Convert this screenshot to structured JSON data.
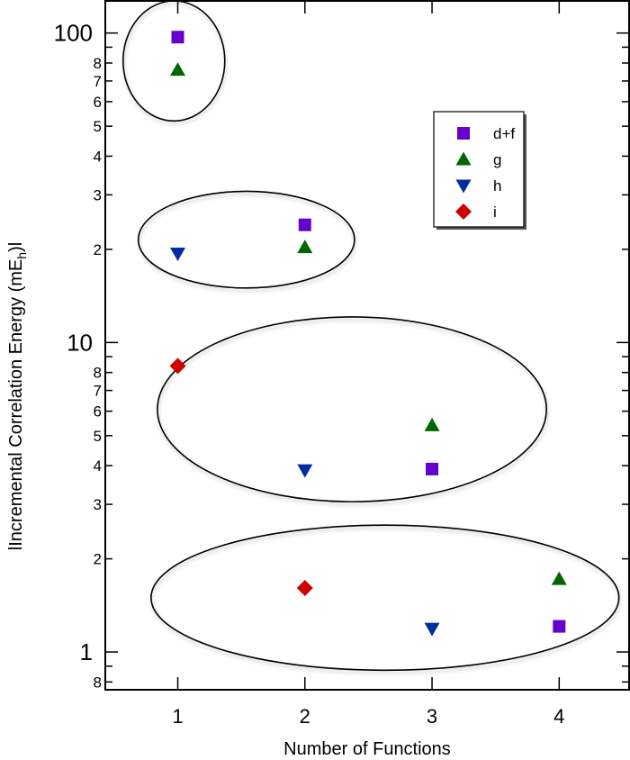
{
  "chart_data": {
    "type": "scatter",
    "title": "",
    "xlabel": "Number of Functions",
    "ylabel": "lIncremental Correlation Energy (mE_h)l",
    "ylabel_parts": {
      "prefix": "lIncremental Correlation Energy (mE",
      "subscript": "h",
      "suffix": ")l"
    },
    "xscale": "linear",
    "yscale": "log",
    "xlim": [
      0.43,
      4.55
    ],
    "ylim": [
      0.755,
      127
    ],
    "grid": false,
    "legend_position": "top-right",
    "x_ticks": [
      {
        "value": 1,
        "label": "1"
      },
      {
        "value": 2,
        "label": "2"
      },
      {
        "value": 3,
        "label": "3"
      },
      {
        "value": 4,
        "label": "4"
      }
    ],
    "y_major_ticks": [
      {
        "value": 1,
        "label": "1"
      },
      {
        "value": 10,
        "label": "10"
      },
      {
        "value": 100,
        "label": "100"
      }
    ],
    "y_minor_ticks": [
      {
        "value": 0.8,
        "label": "8"
      },
      {
        "value": 0.9,
        "label": ""
      },
      {
        "value": 2,
        "label": "2"
      },
      {
        "value": 3,
        "label": "3"
      },
      {
        "value": 4,
        "label": "4"
      },
      {
        "value": 5,
        "label": "5"
      },
      {
        "value": 6,
        "label": "6"
      },
      {
        "value": 7,
        "label": "7"
      },
      {
        "value": 8,
        "label": "8"
      },
      {
        "value": 9,
        "label": ""
      },
      {
        "value": 20,
        "label": "2"
      },
      {
        "value": 30,
        "label": "3"
      },
      {
        "value": 40,
        "label": "4"
      },
      {
        "value": 50,
        "label": "5"
      },
      {
        "value": 60,
        "label": "6"
      },
      {
        "value": 70,
        "label": "7"
      },
      {
        "value": 80,
        "label": "8"
      },
      {
        "value": 90,
        "label": ""
      }
    ],
    "series": [
      {
        "name": "d+f",
        "marker": "square",
        "color": "#6600cc",
        "points": [
          {
            "x": 1,
            "y": 97
          },
          {
            "x": 2,
            "y": 24
          },
          {
            "x": 3,
            "y": 3.9
          },
          {
            "x": 4,
            "y": 1.21
          }
        ]
      },
      {
        "name": "g",
        "marker": "triangle-up",
        "color": "#006600",
        "points": [
          {
            "x": 1,
            "y": 76
          },
          {
            "x": 2,
            "y": 20.3
          },
          {
            "x": 3,
            "y": 5.4
          },
          {
            "x": 4,
            "y": 1.72
          }
        ]
      },
      {
        "name": "h",
        "marker": "triangle-down",
        "color": "#002d9e",
        "points": [
          {
            "x": 1,
            "y": 19.4
          },
          {
            "x": 2,
            "y": 3.87
          },
          {
            "x": 3,
            "y": 1.19
          }
        ]
      },
      {
        "name": "i",
        "marker": "diamond",
        "color": "#cc0000",
        "points": [
          {
            "x": 1,
            "y": 8.4
          },
          {
            "x": 2,
            "y": 1.61
          }
        ]
      }
    ],
    "annotations": [
      {
        "type": "ellipse",
        "label": "group-1",
        "x_center": 0.97,
        "y_center": 81,
        "x_halfwidth": 0.4,
        "y_top": 127,
        "y_bottom": 52
      },
      {
        "type": "ellipse",
        "label": "group-2",
        "x_center": 1.54,
        "y_center": 21.5,
        "x_halfwidth": 0.85,
        "y_top": 30.8,
        "y_bottom": 15.0
      },
      {
        "type": "ellipse",
        "label": "group-3",
        "x_center": 2.37,
        "y_center": 6.1,
        "x_halfwidth": 1.53,
        "y_top": 12.1,
        "y_bottom": 3.06
      },
      {
        "type": "ellipse",
        "label": "group-4",
        "x_center": 2.63,
        "y_center": 1.5,
        "x_halfwidth": 1.84,
        "y_top": 2.57,
        "y_bottom": 0.873
      }
    ]
  }
}
